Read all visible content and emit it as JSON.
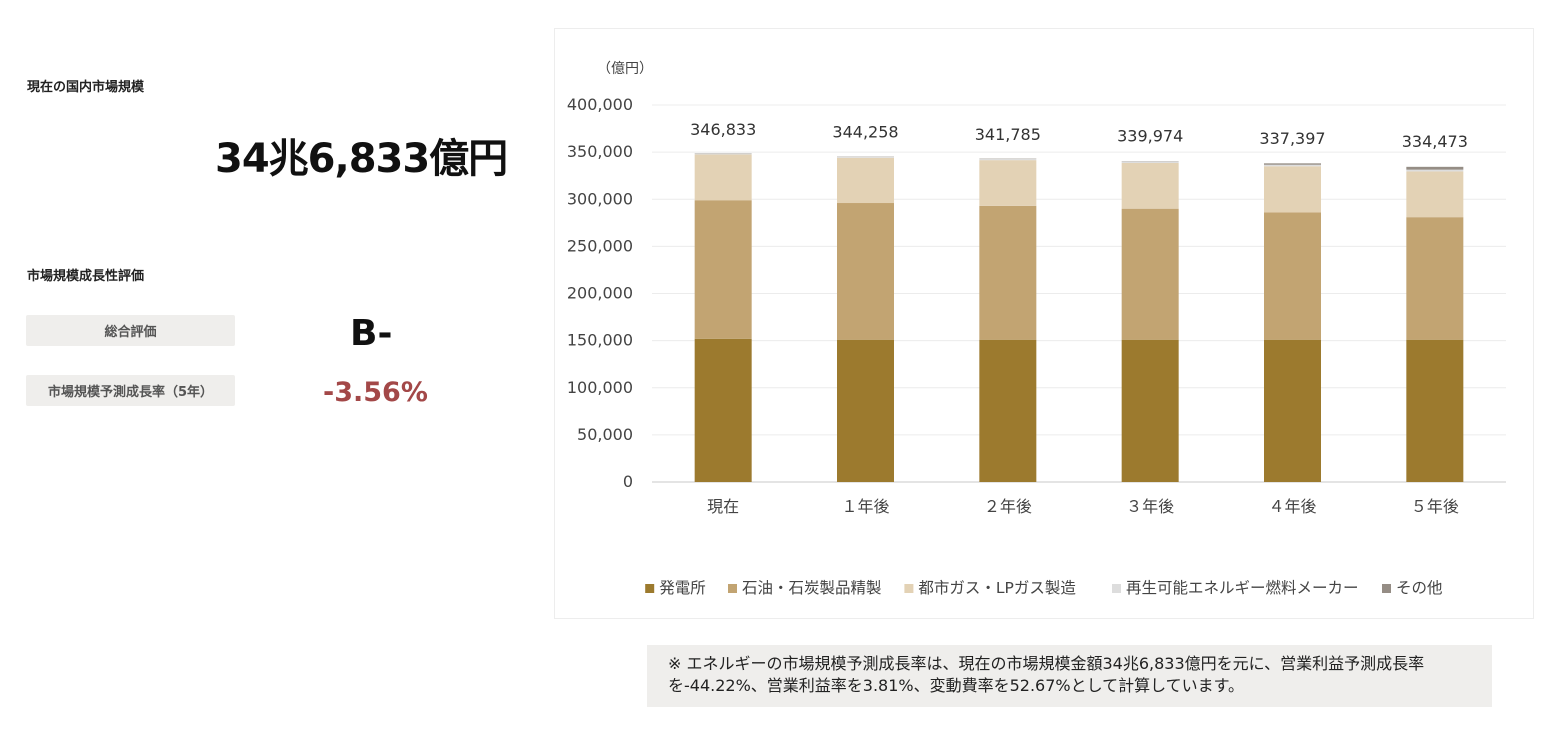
{
  "summary": {
    "market_label": "現在の国内市場規模",
    "market_value": "34兆6,833億円",
    "eval_label": "市場規模成長性評価",
    "overall_label": "総合評価",
    "overall_grade": "B-",
    "growth_label": "市場規模予測成長率（5年）",
    "growth_value": "-3.56%",
    "growth_color": "#a34848"
  },
  "chart_data": {
    "type": "bar",
    "stacked": true,
    "unit_label": "（億円）",
    "categories": [
      "現在",
      "１年後",
      "２年後",
      "３年後",
      "４年後",
      "５年後"
    ],
    "totals_labels": [
      "346,833",
      "344,258",
      "341,785",
      "339,974",
      "337,397",
      "334,473"
    ],
    "totals": [
      346833,
      344258,
      341785,
      339974,
      337397,
      334473
    ],
    "ylim": [
      0,
      400000
    ],
    "yticks": [
      0,
      50000,
      100000,
      150000,
      200000,
      250000,
      300000,
      350000,
      400000
    ],
    "ytick_labels": [
      "0",
      "50,000",
      "100,000",
      "150,000",
      "200,000",
      "250,000",
      "300,000",
      "350,000",
      "400,000"
    ],
    "grid": true,
    "legend_position": "bottom",
    "series": [
      {
        "name": "発電所",
        "color": "#9c7a2e",
        "values": [
          152000,
          151000,
          151000,
          151000,
          151000,
          151000
        ]
      },
      {
        "name": "石油・石炭製品精製",
        "color": "#c2a472",
        "values": [
          147000,
          145000,
          142000,
          139000,
          135000,
          130000
        ]
      },
      {
        "name": "都市ガス・LPガス製造",
        "color": "#e3d2b5",
        "values": [
          48500,
          48000,
          48500,
          48500,
          49000,
          48500
        ]
      },
      {
        "name": "再生可能エネルギー燃料メーカー",
        "color": "#dddddd",
        "values": [
          1000,
          1000,
          1500,
          1500,
          1600,
          1900
        ]
      },
      {
        "name": "その他",
        "color": "#958d85",
        "values": [
          300,
          300,
          300,
          300,
          1500,
          3000
        ]
      }
    ]
  },
  "note": {
    "text": "※ エネルギーの市場規模予測成長率は、現在の市場規模金額34兆6,833億円を元に、営業利益予測成長率を-44.22%、営業利益率を3.81%、変動費率を52.67%として計算しています。"
  }
}
